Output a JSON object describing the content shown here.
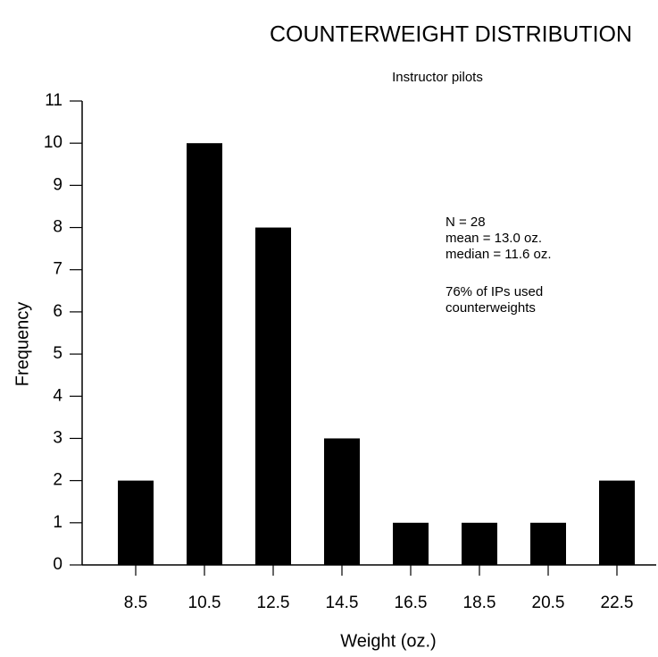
{
  "chart_data": {
    "type": "bar",
    "title": "COUNTERWEIGHT DISTRIBUTION",
    "subtitle": "Instructor pilots",
    "x_label": "Weight (oz.)",
    "y_label": "Frequency",
    "categories": [
      "8.5",
      "10.5",
      "12.5",
      "14.5",
      "16.5",
      "18.5",
      "20.5",
      "22.5"
    ],
    "values": [
      2,
      10,
      8,
      3,
      1,
      1,
      1,
      2
    ],
    "color": "#000000",
    "ylim": [
      0,
      11
    ],
    "yticks": [
      0,
      1,
      2,
      3,
      4,
      5,
      6,
      7,
      8,
      9,
      10,
      11
    ],
    "annotations": [
      "N = 28",
      "mean = 13.0 oz.",
      "median = 11.6 oz.",
      "76% of IPs used",
      "counterweights"
    ]
  }
}
